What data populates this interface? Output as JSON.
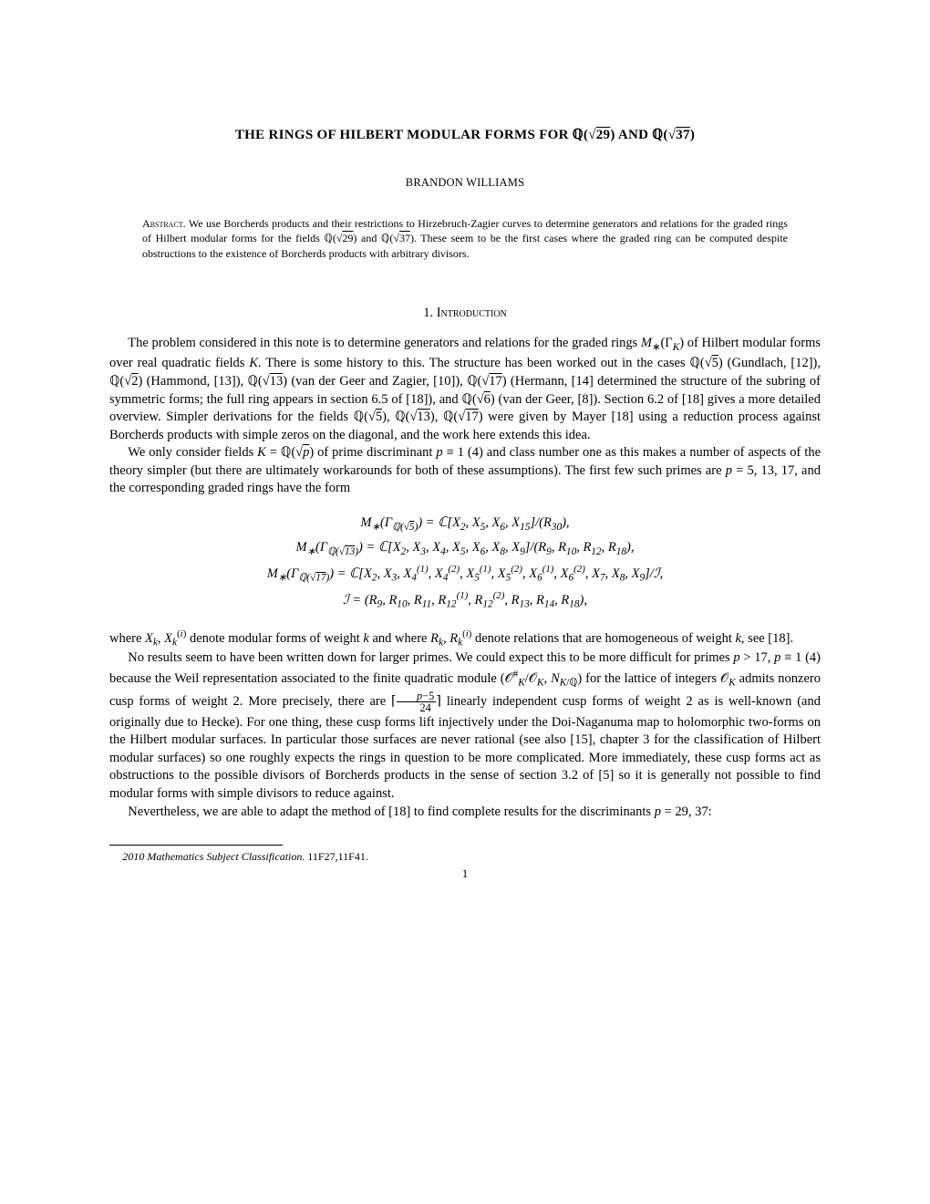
{
  "title_html": "THE RINGS OF HILBERT MODULAR FORMS FOR ℚ(√<span style='text-decoration:overline'>29</span>) AND ℚ(√<span style='text-decoration:overline'>37</span>)",
  "author": "BRANDON WILLIAMS",
  "abstract_label": "Abstract.",
  "abstract_text_html": "We use Borcherds products and their restrictions to Hirzebruch-Zagier curves to determine generators and relations for the graded rings of Hilbert modular forms for the fields ℚ(√<span style='text-decoration:overline'>29</span>) and ℚ(√<span style='text-decoration:overline'>37</span>). These seem to be the first cases where the graded ring can be computed despite obstructions to the existence of Borcherds products with arbitrary divisors.",
  "section": {
    "number": "1.",
    "title": "Introduction"
  },
  "para1_html": "The problem considered in this note is to determine generators and relations for the graded rings <span class='mi'>M</span><sub>∗</sub>(Γ<sub><span class='mi'>K</span></sub>) of Hilbert modular forms over real quadratic fields <span class='mi'>K</span>. There is some history to this. The structure has been worked out in the cases ℚ(√<span style='text-decoration:overline'>5</span>) (Gundlach, [12]), ℚ(√<span style='text-decoration:overline'>2</span>) (Hammond, [13]), ℚ(√<span style='text-decoration:overline'>13</span>) (van der Geer and Zagier, [10]), ℚ(√<span style='text-decoration:overline'>17</span>) (Hermann, [14] determined the structure of the subring of symmetric forms; the full ring appears in section 6.5 of [18]), and ℚ(√<span style='text-decoration:overline'>6</span>) (van der Geer, [8]). Section 6.2 of [18] gives a more detailed overview. Simpler derivations for the fields ℚ(√<span style='text-decoration:overline'>5</span>), ℚ(√<span style='text-decoration:overline'>13</span>), ℚ(√<span style='text-decoration:overline'>17</span>) were given by Mayer [18] using a reduction process against Borcherds products with simple zeros on the diagonal, and the work here extends this idea.",
  "para2_html": "We only consider fields <span class='mi'>K</span> = ℚ(√<span style='text-decoration:overline'><span class='mi'>p</span></span>) of prime discriminant <span class='mi'>p</span> ≡ 1 (4) and class number one as this makes a number of aspects of the theory simpler (but there are ultimately workarounds for both of these assumptions). The first few such primes are <span class='mi'>p</span> = 5, 13, 17, and the corresponding graded rings have the form",
  "eq1_html": "<span class='mi'>M</span><sub>∗</sub>(Γ<sub>ℚ(√<span style='text-decoration:overline'>5</span>)</sub>) = ℂ[<span class='mi'>X</span><sub>2</sub>, <span class='mi'>X</span><sub>5</sub>, <span class='mi'>X</span><sub>6</sub>, <span class='mi'>X</span><sub>15</sub>]/(<span class='mi'>R</span><sub>30</sub>),",
  "eq2_html": "<span class='mi'>M</span><sub>∗</sub>(Γ<sub>ℚ(√<span style='text-decoration:overline'>13</span>)</sub>) = ℂ[<span class='mi'>X</span><sub>2</sub>, <span class='mi'>X</span><sub>3</sub>, <span class='mi'>X</span><sub>4</sub>, <span class='mi'>X</span><sub>5</sub>, <span class='mi'>X</span><sub>6</sub>, <span class='mi'>X</span><sub>8</sub>, <span class='mi'>X</span><sub>9</sub>]/(<span class='mi'>R</span><sub>9</sub>, <span class='mi'>R</span><sub>10</sub>, <span class='mi'>R</span><sub>12</sub>, <span class='mi'>R</span><sub>18</sub>),",
  "eq3_html": "<span class='mi'>M</span><sub>∗</sub>(Γ<sub>ℚ(√<span style='text-decoration:overline'>17</span>)</sub>) = ℂ[<span class='mi'>X</span><sub>2</sub>, <span class='mi'>X</span><sub>3</sub>, <span class='mi'>X</span><sub>4</sub><sup>(1)</sup>, <span class='mi'>X</span><sub>4</sub><sup>(2)</sup>, <span class='mi'>X</span><sub>5</sub><sup>(1)</sup>, <span class='mi'>X</span><sub>5</sub><sup>(2)</sup>, <span class='mi'>X</span><sub>6</sub><sup>(1)</sup>, <span class='mi'>X</span><sub>6</sub><sup>(2)</sup>, <span class='mi'>X</span><sub>7</sub>, <span class='mi'>X</span><sub>8</sub>, <span class='mi'>X</span><sub>9</sub>]/ℐ,",
  "eq4_html": "ℐ = (<span class='mi'>R</span><sub>9</sub>, <span class='mi'>R</span><sub>10</sub>, <span class='mi'>R</span><sub>11</sub>, <span class='mi'>R</span><sub>12</sub><sup>(1)</sup>, <span class='mi'>R</span><sub>12</sub><sup>(2)</sup>, <span class='mi'>R</span><sub>13</sub>, <span class='mi'>R</span><sub>14</sub>, <span class='mi'>R</span><sub>18</sub>),",
  "para3_html": "where <span class='mi'>X</span><sub><span class='mi'>k</span></sub>, <span class='mi'>X</span><sub><span class='mi'>k</span></sub><sup>(<span class='mi'>i</span>)</sup> denote modular forms of weight <span class='mi'>k</span> and where <span class='mi'>R</span><sub><span class='mi'>k</span></sub>, <span class='mi'>R</span><sub><span class='mi'>k</span></sub><sup>(<span class='mi'>i</span>)</sup> denote relations that are homogeneous of weight <span class='mi'>k</span>, see [18].",
  "para4_html": "No results seem to have been written down for larger primes. We could expect this to be more difficult for primes <span class='mi'>p</span> &gt; 17, <span class='mi'>p</span> ≡ 1 (4) because the Weil representation associated to the finite quadratic module (𝒪<sup>#</sup><sub><span class='mi'>K</span></sub>/𝒪<sub><span class='mi'>K</span></sub>, <span class='mi'>N</span><sub><span class='mi'>K</span>/ℚ</sub>) for the lattice of integers 𝒪<sub><span class='mi'>K</span></sub> admits nonzero cusp forms of weight 2. More precisely, there are ⌈<span style='display:inline-block;vertical-align:middle'><span style='display:block;border-bottom:1px solid #000;padding:0 2px;font-size:0.85em;line-height:1'><span class='mi'>p</span>−5</span><span style='display:block;text-align:center;font-size:0.85em;line-height:1'>24</span></span>⌉ linearly independent cusp forms of weight 2 as is well-known (and originally due to Hecke). For one thing, these cusp forms lift injectively under the Doi-Naganuma map to holomorphic two-forms on the Hilbert modular surfaces. In particular those surfaces are never rational (see also [15], chapter 3 for the classification of Hilbert modular surfaces) so one roughly expects the rings in question to be more complicated. More immediately, these cusp forms act as obstructions to the possible divisors of Borcherds products in the sense of section 3.2 of [5] so it is generally not possible to find modular forms with simple divisors to reduce against.",
  "para5_html": "Nevertheless, we are able to adapt the method of [18] to find complete results for the discriminants <span class='mi'>p</span> = 29, 37:",
  "footnote_label": "2010 Mathematics Subject Classification.",
  "footnote_text": "11F27,11F41.",
  "page_number": "1"
}
